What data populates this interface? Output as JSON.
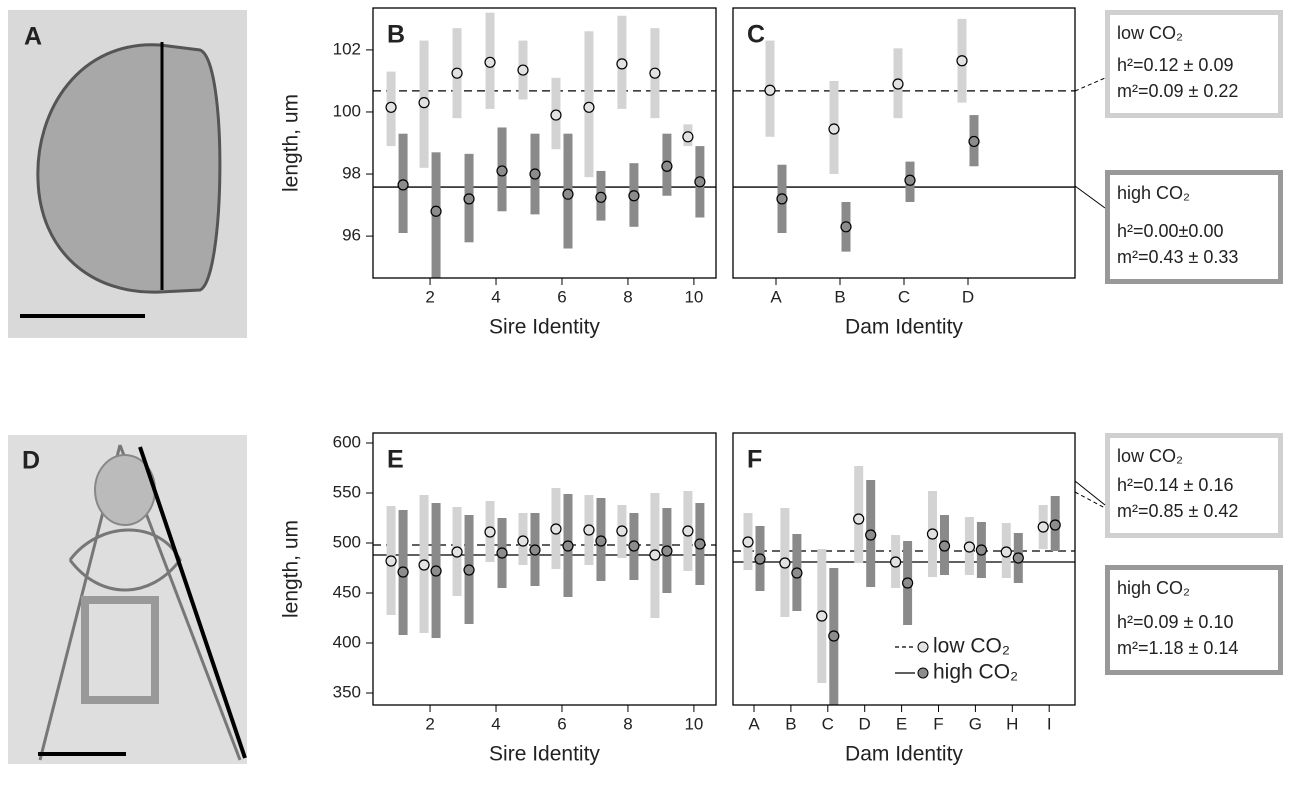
{
  "chart_data": [
    {
      "type": "interval",
      "panel_label": "B",
      "ylabel": "length, um",
      "xlabel": "Sire Identity",
      "x": [
        1,
        2,
        3,
        4,
        5,
        6,
        7,
        8,
        9,
        10
      ],
      "xlim": [
        0.27,
        10.67
      ],
      "xticks": [
        2,
        4,
        6,
        8,
        10
      ],
      "ylim": [
        94.65,
        103.35
      ],
      "yticks": [
        96,
        98,
        100,
        102
      ],
      "series": [
        {
          "color": "#e2e2e2",
          "bar_color": "#d3d3d3",
          "line_style": "dashed",
          "reference": 100.68,
          "values": [
            100.15,
            100.3,
            101.25,
            101.6,
            101.35,
            99.9,
            100.15,
            101.55,
            101.25,
            99.2
          ],
          "lower": [
            98.9,
            98.2,
            99.8,
            100.1,
            100.4,
            98.8,
            97.9,
            100.1,
            99.8,
            98.9
          ],
          "upper": [
            101.3,
            102.3,
            102.7,
            103.2,
            102.3,
            101.1,
            102.6,
            103.1,
            102.7,
            99.6
          ]
        },
        {
          "color": "#8c8c8c",
          "bar_color": "#8a8a8a",
          "line_style": "solid",
          "reference": 97.58,
          "values": [
            97.65,
            96.8,
            97.2,
            98.1,
            98.0,
            97.35,
            97.25,
            97.3,
            98.25,
            97.75
          ],
          "lower": [
            96.1,
            94.65,
            95.8,
            96.8,
            96.7,
            95.6,
            96.5,
            96.3,
            97.3,
            96.6
          ],
          "upper": [
            99.3,
            98.7,
            98.65,
            99.5,
            99.3,
            99.3,
            98.1,
            98.35,
            99.3,
            98.9
          ]
        }
      ]
    },
    {
      "type": "interval",
      "panel_label": "C",
      "xlabel": "Dam Identity",
      "categories": [
        "A",
        "B",
        "C",
        "D"
      ],
      "ylim": [
        94.65,
        103.35
      ],
      "series": [
        {
          "color": "#e2e2e2",
          "bar_color": "#d3d3d3",
          "line_style": "dashed",
          "reference": 100.68,
          "values": [
            100.7,
            99.45,
            100.9,
            101.65
          ],
          "lower": [
            99.2,
            98.0,
            99.8,
            100.3
          ],
          "upper": [
            102.3,
            101.0,
            102.05,
            103.0
          ]
        },
        {
          "color": "#8c8c8c",
          "bar_color": "#8a8a8a",
          "line_style": "solid",
          "reference": 97.58,
          "values": [
            97.2,
            96.3,
            97.8,
            99.05
          ],
          "lower": [
            96.1,
            95.5,
            97.1,
            98.25
          ],
          "upper": [
            98.3,
            97.1,
            98.4,
            99.9
          ]
        }
      ]
    },
    {
      "type": "interval",
      "panel_label": "E",
      "ylabel": "length, um",
      "xlabel": "Sire Identity",
      "x": [
        1,
        2,
        3,
        4,
        5,
        6,
        7,
        8,
        9,
        10
      ],
      "xlim": [
        0.27,
        10.67
      ],
      "xticks": [
        2,
        4,
        6,
        8,
        10
      ],
      "ylim": [
        338,
        610
      ],
      "yticks": [
        350,
        400,
        450,
        500,
        550,
        600
      ],
      "series": [
        {
          "color": "#e2e2e2",
          "bar_color": "#d3d3d3",
          "line_style": "dashed",
          "reference": 498,
          "values": [
            482,
            478,
            491,
            511,
            502,
            514,
            513,
            512,
            488,
            512
          ],
          "lower": [
            428,
            410,
            447,
            481,
            478,
            474,
            478,
            485,
            425,
            472
          ],
          "upper": [
            537,
            548,
            536,
            542,
            530,
            555,
            548,
            538,
            550,
            552
          ]
        },
        {
          "color": "#8c8c8c",
          "bar_color": "#8a8a8a",
          "line_style": "solid",
          "reference": 488,
          "values": [
            471,
            472,
            473,
            490,
            493,
            497,
            502,
            497,
            492,
            499
          ],
          "lower": [
            408,
            405,
            419,
            455,
            457,
            446,
            462,
            463,
            450,
            458
          ],
          "upper": [
            533,
            540,
            528,
            525,
            530,
            549,
            545,
            530,
            535,
            540
          ]
        }
      ]
    },
    {
      "type": "interval",
      "panel_label": "F",
      "xlabel": "Dam Identity",
      "categories": [
        "A",
        "B",
        "C",
        "D",
        "E",
        "F",
        "G",
        "H",
        "I"
      ],
      "ylim": [
        338,
        610
      ],
      "legend": "bottom right",
      "series": [
        {
          "name": "low CO₂",
          "color": "#e2e2e2",
          "bar_color": "#d3d3d3",
          "line_style": "dashed",
          "reference": 492,
          "values": [
            501,
            480,
            427,
            524,
            481,
            509,
            496,
            491,
            516
          ],
          "lower": [
            473,
            426,
            360,
            480,
            455,
            466,
            468,
            465,
            494
          ],
          "upper": [
            530,
            535,
            494,
            577,
            508,
            552,
            526,
            520,
            538
          ]
        },
        {
          "name": "high CO₂",
          "color": "#8c8c8c",
          "bar_color": "#8a8a8a",
          "line_style": "solid",
          "reference": 481,
          "values": [
            484,
            470,
            407,
            508,
            460,
            497,
            493,
            485,
            518
          ],
          "lower": [
            452,
            432,
            338,
            456,
            418,
            468,
            465,
            460,
            492
          ],
          "upper": [
            517,
            509,
            475,
            563,
            502,
            528,
            521,
            510,
            547
          ]
        }
      ]
    }
  ],
  "images": [
    {
      "label": "A"
    },
    {
      "label": "D"
    }
  ],
  "annotations": [
    {
      "title": "low CO₂",
      "lines": [
        "h²=0.12 ± 0.09",
        "m²=0.09 ± 0.22"
      ]
    },
    {
      "title": "high CO₂",
      "lines": [
        "h²=0.00±0.00",
        "m²=0.43 ± 0.33"
      ]
    },
    {
      "title": "low CO₂",
      "lines": [
        "h²=0.14 ± 0.16",
        "m²=0.85 ± 0.42"
      ]
    },
    {
      "title": "high CO₂",
      "lines": [
        "h²=0.09 ± 0.10",
        "m²=1.18 ± 0.14"
      ]
    }
  ]
}
